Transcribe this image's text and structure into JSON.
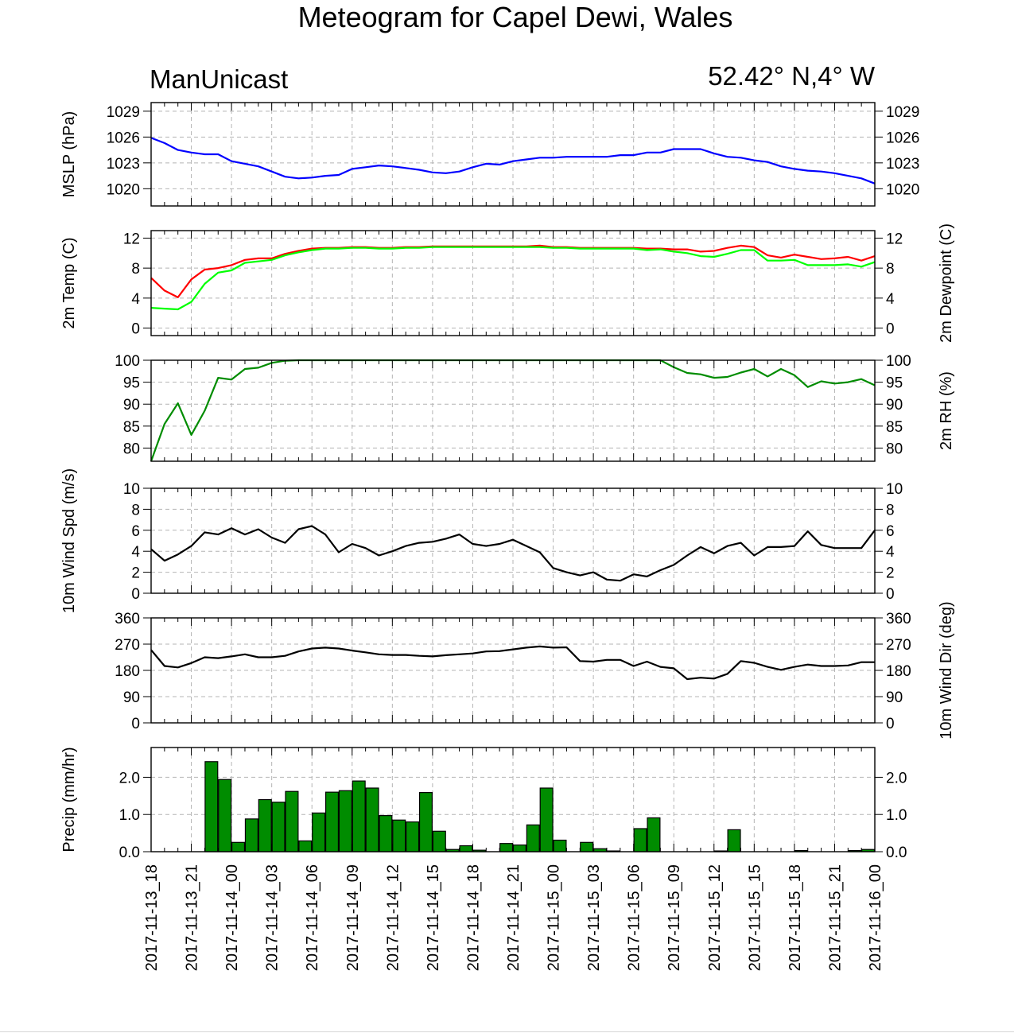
{
  "title": "Meteogram for Capel Dewi, Wales",
  "model": "ManUnicast",
  "location": "52.42° N,4° W",
  "x_tick_labels": [
    "2017-11-13_18",
    "2017-11-13_21",
    "2017-11-14_00",
    "2017-11-14_03",
    "2017-11-14_06",
    "2017-11-14_09",
    "2017-11-14_12",
    "2017-11-14_15",
    "2017-11-14_18",
    "2017-11-14_21",
    "2017-11-15_00",
    "2017-11-15_03",
    "2017-11-15_06",
    "2017-11-15_09",
    "2017-11-15_12",
    "2017-11-15_15",
    "2017-11-15_18",
    "2017-11-15_21",
    "2017-11-16_00"
  ],
  "colors": {
    "mslp": "#0000ff",
    "temp": "#ff0000",
    "dewpoint": "#00ff00",
    "rh": "#008c00",
    "wind": "#000000",
    "precip_fill": "#008c00",
    "grid": "#b4b4b4"
  },
  "chart_data": [
    {
      "id": "mslp",
      "type": "line",
      "ylabel_left": "MSLP (hPa)",
      "ylabel_right": "",
      "ylim": [
        1018,
        1030
      ],
      "yticks": [
        1020,
        1023,
        1026,
        1029
      ],
      "grid": true,
      "x_start": "2017-11-13_18",
      "x_step_hours": 1,
      "series": [
        {
          "key": "mslp",
          "values": [
            1025.9,
            1025.3,
            1024.5,
            1024.2,
            1024.0,
            1024.0,
            1023.2,
            1022.9,
            1022.6,
            1022.0,
            1021.4,
            1021.2,
            1021.3,
            1021.5,
            1021.6,
            1022.3,
            1022.5,
            1022.7,
            1022.6,
            1022.4,
            1022.2,
            1021.9,
            1021.8,
            1022.0,
            1022.5,
            1022.9,
            1022.8,
            1023.2,
            1023.4,
            1023.6,
            1023.6,
            1023.7,
            1023.7,
            1023.7,
            1023.7,
            1023.9,
            1023.9,
            1024.2,
            1024.2,
            1024.6,
            1024.6,
            1024.6,
            1024.1,
            1023.7,
            1023.6,
            1023.3,
            1023.1,
            1022.6,
            1022.3,
            1022.1,
            1022.0,
            1021.8,
            1021.5,
            1021.2,
            1020.6
          ]
        }
      ]
    },
    {
      "id": "temp",
      "type": "line",
      "ylabel_left": "2m Temp (C)",
      "ylabel_right": "2m Dewpoint (C)",
      "ylim": [
        -1,
        13
      ],
      "yticks": [
        0,
        4,
        8,
        12
      ],
      "grid": true,
      "x_start": "2017-11-13_18",
      "x_step_hours": 1,
      "series": [
        {
          "key": "temp",
          "values": [
            6.7,
            5.0,
            4.1,
            6.5,
            7.8,
            8.0,
            8.4,
            9.1,
            9.3,
            9.3,
            9.9,
            10.3,
            10.6,
            10.7,
            10.7,
            10.8,
            10.8,
            10.7,
            10.7,
            10.8,
            10.8,
            10.9,
            10.9,
            10.9,
            10.9,
            10.9,
            10.9,
            10.9,
            10.9,
            11.0,
            10.8,
            10.8,
            10.7,
            10.7,
            10.7,
            10.7,
            10.7,
            10.6,
            10.6,
            10.5,
            10.5,
            10.2,
            10.3,
            10.7,
            11.0,
            10.8,
            9.7,
            9.4,
            9.8,
            9.5,
            9.2,
            9.3,
            9.5,
            9.0,
            9.6
          ]
        },
        {
          "key": "dewpoint",
          "values": [
            2.7,
            2.6,
            2.5,
            3.5,
            5.9,
            7.4,
            7.7,
            8.7,
            8.9,
            9.1,
            9.7,
            10.1,
            10.4,
            10.6,
            10.6,
            10.7,
            10.7,
            10.6,
            10.6,
            10.7,
            10.7,
            10.8,
            10.8,
            10.8,
            10.8,
            10.8,
            10.8,
            10.8,
            10.8,
            10.8,
            10.7,
            10.7,
            10.6,
            10.6,
            10.6,
            10.6,
            10.6,
            10.4,
            10.5,
            10.2,
            10.0,
            9.6,
            9.5,
            9.9,
            10.4,
            10.4,
            9.0,
            9.0,
            9.1,
            8.4,
            8.4,
            8.4,
            8.5,
            8.2,
            8.8
          ]
        }
      ]
    },
    {
      "id": "rh",
      "type": "line",
      "ylabel_left": "",
      "ylabel_right": "2m RH (%)",
      "ylim": [
        77,
        100
      ],
      "yticks": [
        80,
        85,
        90,
        95,
        100
      ],
      "grid": true,
      "x_start": "2017-11-13_18",
      "x_step_hours": 1,
      "series": [
        {
          "key": "rh",
          "values": [
            77.0,
            85.5,
            90.2,
            83.0,
            88.5,
            96.0,
            95.6,
            98.0,
            98.3,
            99.4,
            99.9,
            100,
            100,
            100,
            100,
            100,
            100,
            100,
            100,
            100,
            100,
            100,
            100,
            100,
            100,
            100,
            100,
            100,
            100,
            100,
            100,
            100,
            100,
            100,
            100,
            100,
            100,
            100,
            100,
            98.4,
            97.1,
            96.8,
            96.0,
            96.2,
            97.2,
            98.0,
            96.3,
            98.0,
            96.6,
            93.9,
            95.2,
            94.7,
            95.0,
            95.7,
            94.3
          ]
        }
      ]
    },
    {
      "id": "wind_speed",
      "type": "line",
      "ylabel_left": "10m Wind Spd (m/s)",
      "ylabel_right": "",
      "ylim": [
        0,
        10
      ],
      "yticks": [
        0,
        2,
        4,
        6,
        8,
        10
      ],
      "grid": true,
      "x_start": "2017-11-13_18",
      "x_step_hours": 1,
      "series": [
        {
          "key": "wind",
          "values": [
            4.2,
            3.1,
            3.7,
            4.5,
            5.8,
            5.6,
            6.2,
            5.6,
            6.1,
            5.3,
            4.8,
            6.1,
            6.4,
            5.6,
            3.9,
            4.7,
            4.3,
            3.6,
            4.0,
            4.5,
            4.8,
            4.9,
            5.2,
            5.6,
            4.7,
            4.5,
            4.7,
            5.1,
            4.5,
            3.9,
            2.4,
            2.0,
            1.7,
            2.0,
            1.3,
            1.2,
            1.8,
            1.6,
            2.2,
            2.7,
            3.6,
            4.4,
            3.8,
            4.5,
            4.8,
            3.6,
            4.4,
            4.4,
            4.5,
            5.9,
            4.6,
            4.3,
            4.3,
            4.3,
            6.0
          ]
        }
      ]
    },
    {
      "id": "wind_dir",
      "type": "line",
      "ylabel_left": "",
      "ylabel_right": "10m Wind Dir (deg)",
      "ylim": [
        0,
        360
      ],
      "yticks": [
        0,
        90,
        180,
        270,
        360
      ],
      "grid": true,
      "x_start": "2017-11-13_18",
      "x_step_hours": 1,
      "series": [
        {
          "key": "wind",
          "values": [
            250,
            195,
            190,
            205,
            225,
            222,
            228,
            235,
            225,
            225,
            230,
            245,
            255,
            258,
            255,
            248,
            242,
            235,
            233,
            233,
            230,
            228,
            232,
            235,
            238,
            245,
            246,
            252,
            258,
            262,
            258,
            259,
            212,
            210,
            216,
            216,
            195,
            210,
            192,
            187,
            150,
            155,
            152,
            168,
            212,
            206,
            192,
            182,
            192,
            200,
            195,
            195,
            197,
            208,
            208
          ]
        }
      ]
    },
    {
      "id": "precip",
      "type": "bar",
      "ylabel_left": "Precip (mm/hr)",
      "ylabel_right": "",
      "ylim": [
        0,
        2.8
      ],
      "yticks": [
        0.0,
        1.0,
        2.0
      ],
      "ytick_labels": [
        "0.0",
        "1.0",
        "2.0"
      ],
      "grid": true,
      "x_start": "2017-11-13_18",
      "x_step_hours": 1,
      "values": [
        0,
        0,
        0,
        0,
        2.42,
        1.94,
        0.25,
        0.88,
        1.4,
        1.33,
        1.62,
        0.29,
        1.04,
        1.6,
        1.64,
        1.9,
        1.71,
        0.97,
        0.85,
        0.8,
        1.59,
        0.55,
        0.06,
        0.16,
        0.04,
        0,
        0.22,
        0.18,
        0.72,
        1.71,
        0.31,
        0,
        0.25,
        0.08,
        0.02,
        0,
        0.62,
        0.91,
        0,
        0,
        0,
        0,
        0.02,
        0.59,
        0,
        0,
        0,
        0,
        0.03,
        0,
        0,
        0,
        0.03,
        0.06,
        0
      ]
    }
  ]
}
